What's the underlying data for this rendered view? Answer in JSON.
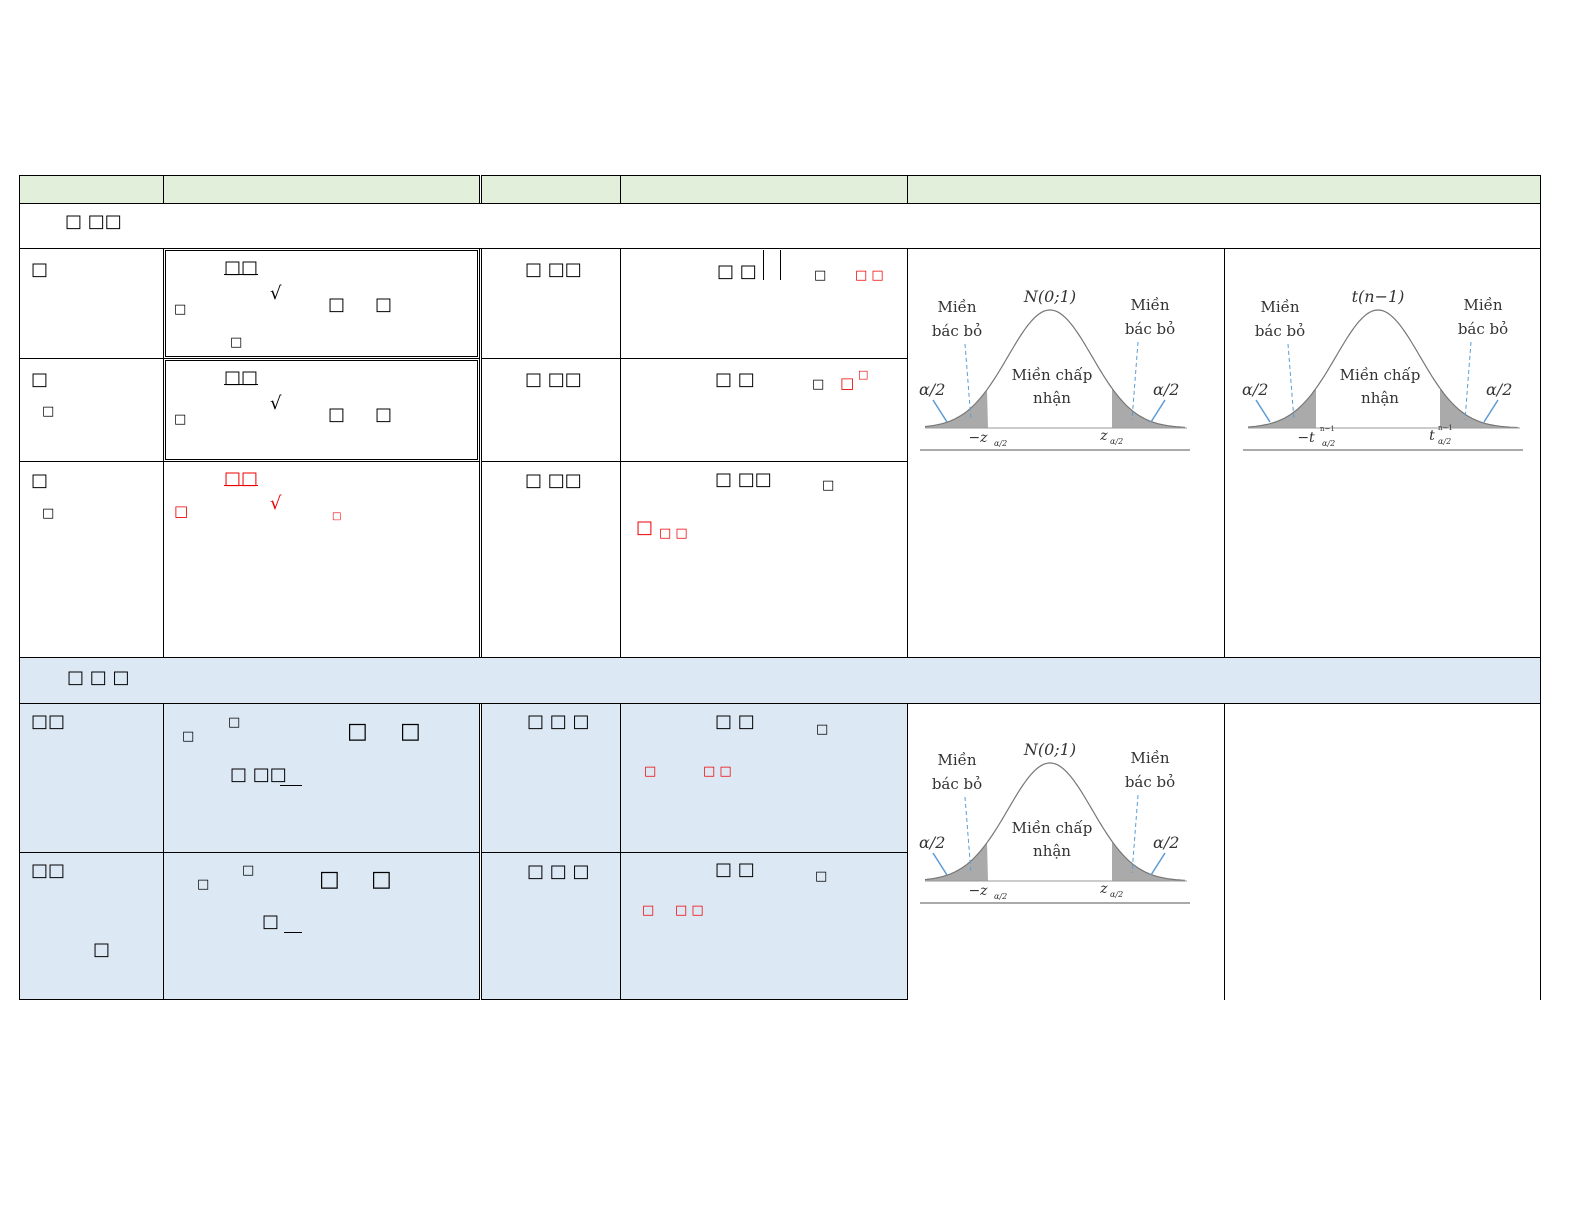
{
  "colors": {
    "header_bg": "#e2efda",
    "section_bg": "#dde8f5",
    "red": "#e00000"
  },
  "section1": {
    "title": "□ □□"
  },
  "section2": {
    "title": "□ □ □"
  },
  "rows": [
    {
      "c1": "□",
      "c2a": "□□",
      "c2b": "□",
      "c2c": "√",
      "c2d": "□",
      "c2e": "□",
      "c2f": "□",
      "c3": "□ □□",
      "c4a": "□ □",
      "c4b": "□",
      "c4c": "□ □"
    },
    {
      "c1": "□",
      "c1b": "□",
      "c2a": "□□",
      "c2b": "□",
      "c2c": "√",
      "c2d": "□",
      "c2e": "□",
      "c3": "□ □□",
      "c4a": "□ □",
      "c4b": "□",
      "c4c": "□",
      "c4d": "□"
    },
    {
      "c1": "□",
      "c1b": "□",
      "c2a": "□□",
      "c2b": "□",
      "c2c": "√",
      "c2d": "□",
      "c3": "□ □□",
      "c4a": "□ □□",
      "c4b": "□",
      "c4c": "□",
      "c4d": "□ □"
    },
    {
      "c1": "□□",
      "c2a": "□",
      "c2b": "□",
      "c2c": "□",
      "c2d": "□",
      "c2e": "□ □□",
      "c3": "□ □ □",
      "c4a": "□ □",
      "c4b": "□",
      "c4c": "□",
      "c4d": "□ □"
    },
    {
      "c1": "□□",
      "c1b": "□",
      "c2a": "□",
      "c2b": "□",
      "c2c": "□",
      "c2d": "□",
      "c2e": "□",
      "c3": "□ □ □",
      "c4a": "□ □",
      "c4b": "□",
      "c4c": "□",
      "c4d": "□ □"
    }
  ],
  "diagrams": {
    "normal": {
      "dist": "N(0;1)",
      "reject": [
        "Miền",
        "bác bỏ"
      ],
      "accept": [
        "Miền chấp",
        "nhận"
      ],
      "alpha": "α/2",
      "left": "−z",
      "right": "z",
      "sub": "α/2"
    },
    "student": {
      "dist": "t(n−1)",
      "reject": [
        "Miền",
        "bác bỏ"
      ],
      "accept": [
        "Miền chấp",
        "nhận"
      ],
      "alpha": "α/2",
      "left": "−t",
      "right": "t",
      "sub": "α/2",
      "sup": "n−1"
    }
  }
}
